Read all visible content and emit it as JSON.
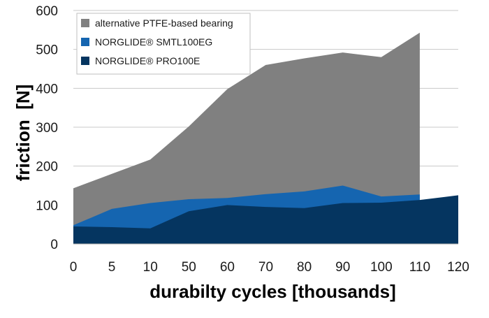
{
  "chart_data": {
    "type": "area",
    "title": "",
    "xlabel": "durabilty cycles [thousands]",
    "ylabel": "friction  [N]",
    "categories": [
      "0",
      "5",
      "10",
      "50",
      "60",
      "70",
      "80",
      "90",
      "100",
      "110",
      "120"
    ],
    "ylim": [
      0,
      600
    ],
    "yticks": [
      0,
      100,
      200,
      300,
      400,
      500,
      600
    ],
    "grid": true,
    "legend_position": "top-left",
    "series": [
      {
        "name": "alternative PTFE-based bearing",
        "color": "#808080",
        "values": [
          143,
          180,
          217,
          302,
          398,
          460,
          477,
          492,
          480,
          543,
          null
        ]
      },
      {
        "name": "NORGLIDE® SMTL100EG",
        "color": "#1565b0",
        "values": [
          48,
          90,
          105,
          115,
          118,
          128,
          135,
          150,
          122,
          127,
          null
        ]
      },
      {
        "name": "NORGLIDE® PRO100E",
        "color": "#053560",
        "values": [
          45,
          43,
          40,
          84,
          100,
          95,
          92,
          105,
          106,
          113,
          125
        ]
      }
    ]
  }
}
